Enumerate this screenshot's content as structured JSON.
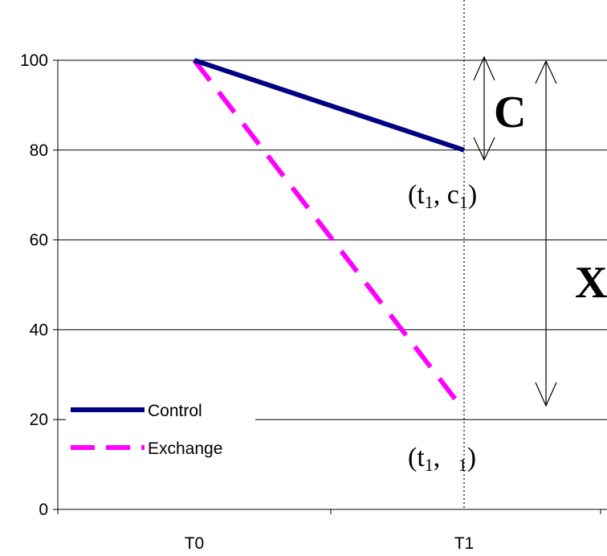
{
  "chart_data": {
    "type": "line",
    "categories": [
      "T0",
      "T1"
    ],
    "series": [
      {
        "name": "Control",
        "values": [
          100,
          80
        ],
        "color": "#000080",
        "style": "solid"
      },
      {
        "name": "Exchange",
        "values": [
          100,
          22
        ],
        "color": "#ff00ff",
        "style": "dashed"
      }
    ],
    "ylim": [
      0,
      100
    ],
    "yticks": [
      0,
      20,
      40,
      60,
      80,
      100
    ],
    "grid": true,
    "legend": "lower-left",
    "annotations": {
      "label_c": "C",
      "label_x": "X",
      "point_c1": {
        "paren_open": "(t",
        "sub1": "1",
        "comma": ", c",
        "sub2": "1",
        "paren_close": ")"
      },
      "point_x1": {
        "paren_open": "(t",
        "sub1": "1",
        "comma": ", ",
        "sub2": "1",
        "paren_close": ")"
      }
    }
  }
}
